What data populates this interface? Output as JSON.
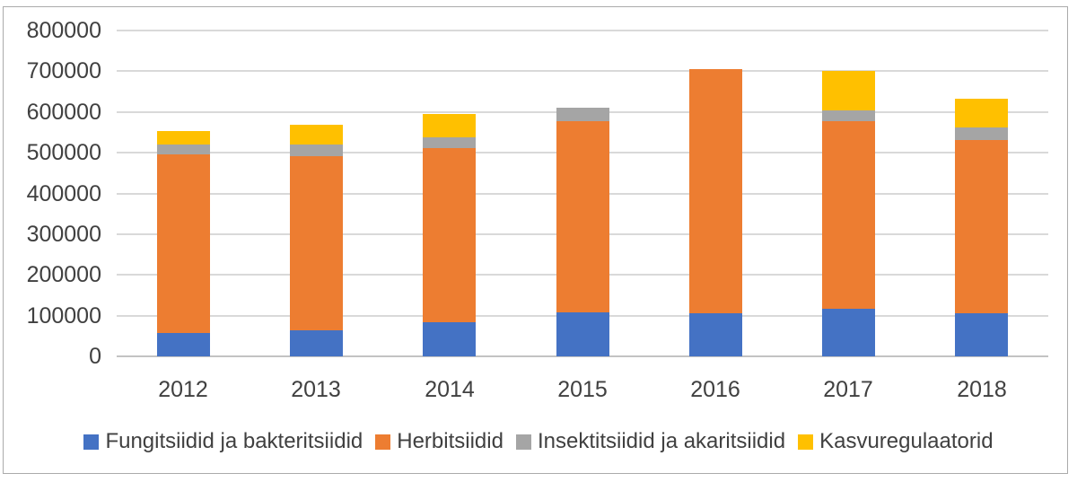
{
  "chart_data": {
    "type": "bar",
    "stacked": true,
    "title": "",
    "xlabel": "",
    "ylabel": "",
    "categories": [
      "2012",
      "2013",
      "2014",
      "2015",
      "2016",
      "2017",
      "2018"
    ],
    "series": [
      {
        "name": "Fungitsiidid ja bakteritsiidid",
        "color": "#4472C4",
        "values": [
          57000,
          63000,
          84000,
          108000,
          106000,
          117000,
          105000
        ]
      },
      {
        "name": "Herbitsiidid",
        "color": "#ED7D31",
        "values": [
          439000,
          429000,
          427000,
          469000,
          600000,
          460000,
          426000
        ]
      },
      {
        "name": "Insektitsiidid ja akaritsiidid",
        "color": "#A5A5A5",
        "values": [
          25000,
          28000,
          27000,
          33000,
          0,
          27000,
          31000
        ]
      },
      {
        "name": "Kasvuregulaatorid",
        "color": "#FFC000",
        "values": [
          33000,
          48000,
          57000,
          0,
          0,
          96000,
          70000
        ]
      }
    ],
    "stack_totals": [
      554000,
      568000,
      595000,
      610000,
      706000,
      700000,
      632000
    ],
    "ylim": [
      0,
      800000
    ],
    "ytick_step": 100000,
    "ytick_labels": [
      "0",
      "100000",
      "200000",
      "300000",
      "400000",
      "500000",
      "600000",
      "700000",
      "800000"
    ],
    "grid": true,
    "legend_position": "bottom"
  },
  "colors": {
    "gridline": "#D9D9D9",
    "axis_line": "#C3C3C3",
    "text": "#404040",
    "frame_border": "#ABABAB",
    "background": "#FFFFFF"
  }
}
